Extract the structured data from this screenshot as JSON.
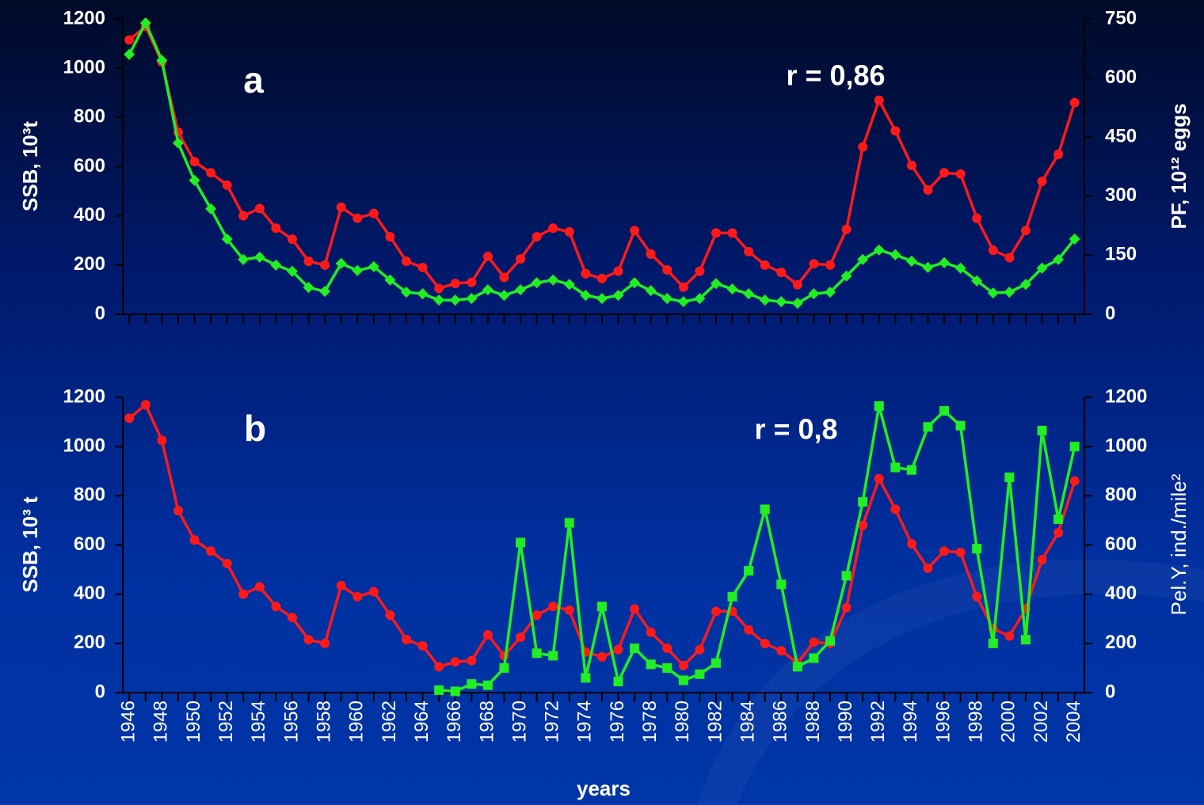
{
  "chart_data": [
    {
      "type": "line",
      "x": [
        1946,
        1947,
        1948,
        1949,
        1950,
        1951,
        1952,
        1953,
        1954,
        1955,
        1956,
        1957,
        1958,
        1959,
        1960,
        1961,
        1962,
        1963,
        1964,
        1965,
        1966,
        1967,
        1968,
        1969,
        1970,
        1971,
        1972,
        1973,
        1974,
        1975,
        1976,
        1977,
        1978,
        1979,
        1980,
        1981,
        1982,
        1983,
        1984,
        1985,
        1986,
        1987,
        1988,
        1989,
        1990,
        1991,
        1992,
        1993,
        1994,
        1995,
        1996,
        1997,
        1998,
        1999,
        2000,
        2001,
        2002,
        2003,
        2004
      ],
      "xlim": [
        1945.6,
        2004.6
      ],
      "ylim": [
        0,
        1200
      ],
      "yticks": [
        0,
        200,
        400,
        600,
        800,
        1000,
        1200
      ],
      "y2lim": [
        0,
        750
      ],
      "y2ticks": [
        0,
        150,
        300,
        450,
        600,
        750
      ],
      "ylabel": "SSB, 10³t",
      "y2label": "PF, 10¹² eggs",
      "annotations": [
        "a",
        "r = 0,86"
      ],
      "series": [
        {
          "color": "#ff1a1a",
          "marker": "circle",
          "values": [
            1115,
            1170,
            1025,
            740,
            620,
            575,
            525,
            400,
            430,
            350,
            305,
            215,
            200,
            435,
            390,
            410,
            315,
            215,
            190,
            105,
            125,
            130,
            235,
            150,
            225,
            315,
            350,
            335,
            165,
            145,
            175,
            340,
            245,
            180,
            110,
            175,
            330,
            330,
            255,
            200,
            170,
            120,
            205,
            200,
            345,
            680,
            870,
            745,
            605,
            505,
            575,
            570,
            390,
            260,
            230,
            340,
            540,
            650,
            860
          ]
        },
        {
          "color": "#22ee22",
          "marker": "diamond",
          "axis": "y2",
          "values": [
            660,
            740,
            645,
            435,
            340,
            268,
            191,
            139,
            145,
            125,
            109,
            68,
            58,
            129,
            111,
            121,
            87,
            56,
            52,
            36,
            36,
            40,
            62,
            48,
            62,
            80,
            87,
            76,
            48,
            40,
            48,
            80,
            60,
            40,
            32,
            40,
            78,
            64,
            52,
            36,
            32,
            28,
            52,
            56,
            97,
            139,
            163,
            151,
            135,
            119,
            131,
            117,
            85,
            54,
            56,
            76,
            117,
            139,
            191
          ]
        }
      ]
    },
    {
      "type": "line",
      "x": [
        1946,
        1947,
        1948,
        1949,
        1950,
        1951,
        1952,
        1953,
        1954,
        1955,
        1956,
        1957,
        1958,
        1959,
        1960,
        1961,
        1962,
        1963,
        1964,
        1965,
        1966,
        1967,
        1968,
        1969,
        1970,
        1971,
        1972,
        1973,
        1974,
        1975,
        1976,
        1977,
        1978,
        1979,
        1980,
        1981,
        1982,
        1983,
        1984,
        1985,
        1986,
        1987,
        1988,
        1989,
        1990,
        1991,
        1992,
        1993,
        1994,
        1995,
        1996,
        1997,
        1998,
        1999,
        2000,
        2001,
        2002,
        2003,
        2004
      ],
      "xlim": [
        1945.6,
        2004.6
      ],
      "xticks": [
        1946,
        1948,
        1950,
        1952,
        1954,
        1956,
        1958,
        1960,
        1962,
        1964,
        1966,
        1968,
        1970,
        1972,
        1974,
        1976,
        1978,
        1980,
        1982,
        1984,
        1986,
        1988,
        1990,
        1992,
        1994,
        1996,
        1998,
        2000,
        2002,
        2004
      ],
      "xlabel": "years",
      "ylim": [
        0,
        1200
      ],
      "yticks": [
        0,
        200,
        400,
        600,
        800,
        1000,
        1200
      ],
      "y2lim": [
        0,
        1200
      ],
      "y2ticks": [
        0,
        200,
        400,
        600,
        800,
        1000,
        1200
      ],
      "ylabel": "SSB, 10³ t",
      "y2label": "Pel.Y, ind./mile²",
      "annotations": [
        "b",
        "r = 0,8"
      ],
      "series": [
        {
          "color": "#ff1a1a",
          "marker": "circle",
          "values": [
            1115,
            1170,
            1025,
            740,
            620,
            575,
            525,
            400,
            430,
            350,
            305,
            215,
            200,
            435,
            390,
            410,
            315,
            215,
            190,
            105,
            125,
            130,
            235,
            150,
            225,
            315,
            350,
            335,
            165,
            145,
            175,
            340,
            245,
            180,
            110,
            175,
            330,
            330,
            255,
            200,
            170,
            120,
            205,
            200,
            345,
            680,
            870,
            745,
            605,
            505,
            575,
            570,
            390,
            260,
            230,
            340,
            540,
            650,
            860
          ]
        },
        {
          "color": "#22ee22",
          "marker": "square",
          "axis": "y2",
          "values": [
            null,
            null,
            null,
            null,
            null,
            null,
            null,
            null,
            null,
            null,
            null,
            null,
            null,
            null,
            null,
            null,
            null,
            null,
            null,
            10,
            5,
            35,
            30,
            100,
            610,
            160,
            150,
            690,
            60,
            350,
            45,
            180,
            115,
            100,
            50,
            75,
            120,
            390,
            495,
            745,
            440,
            105,
            140,
            210,
            475,
            775,
            1165,
            915,
            905,
            1080,
            1145,
            1085,
            585,
            200,
            875,
            215,
            1065,
            705,
            1000
          ]
        }
      ]
    }
  ]
}
